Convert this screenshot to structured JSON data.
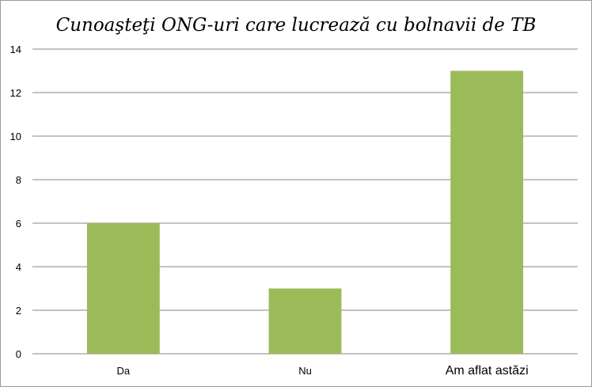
{
  "chart_data": {
    "type": "bar",
    "title": "Cunoaşteţi ONG-uri care lucrează cu bolnavii de TB",
    "xlabel": "",
    "ylabel": "",
    "categories": [
      "Da",
      "Nu",
      "Am aflat astăzi"
    ],
    "values": [
      6,
      3,
      13
    ],
    "ylim": [
      0,
      14
    ],
    "yticks": [
      0,
      2,
      4,
      6,
      8,
      10,
      12,
      14
    ],
    "grid": true,
    "legend": "none",
    "bar_color": "#9BBB59",
    "grid_color": "#868686"
  }
}
